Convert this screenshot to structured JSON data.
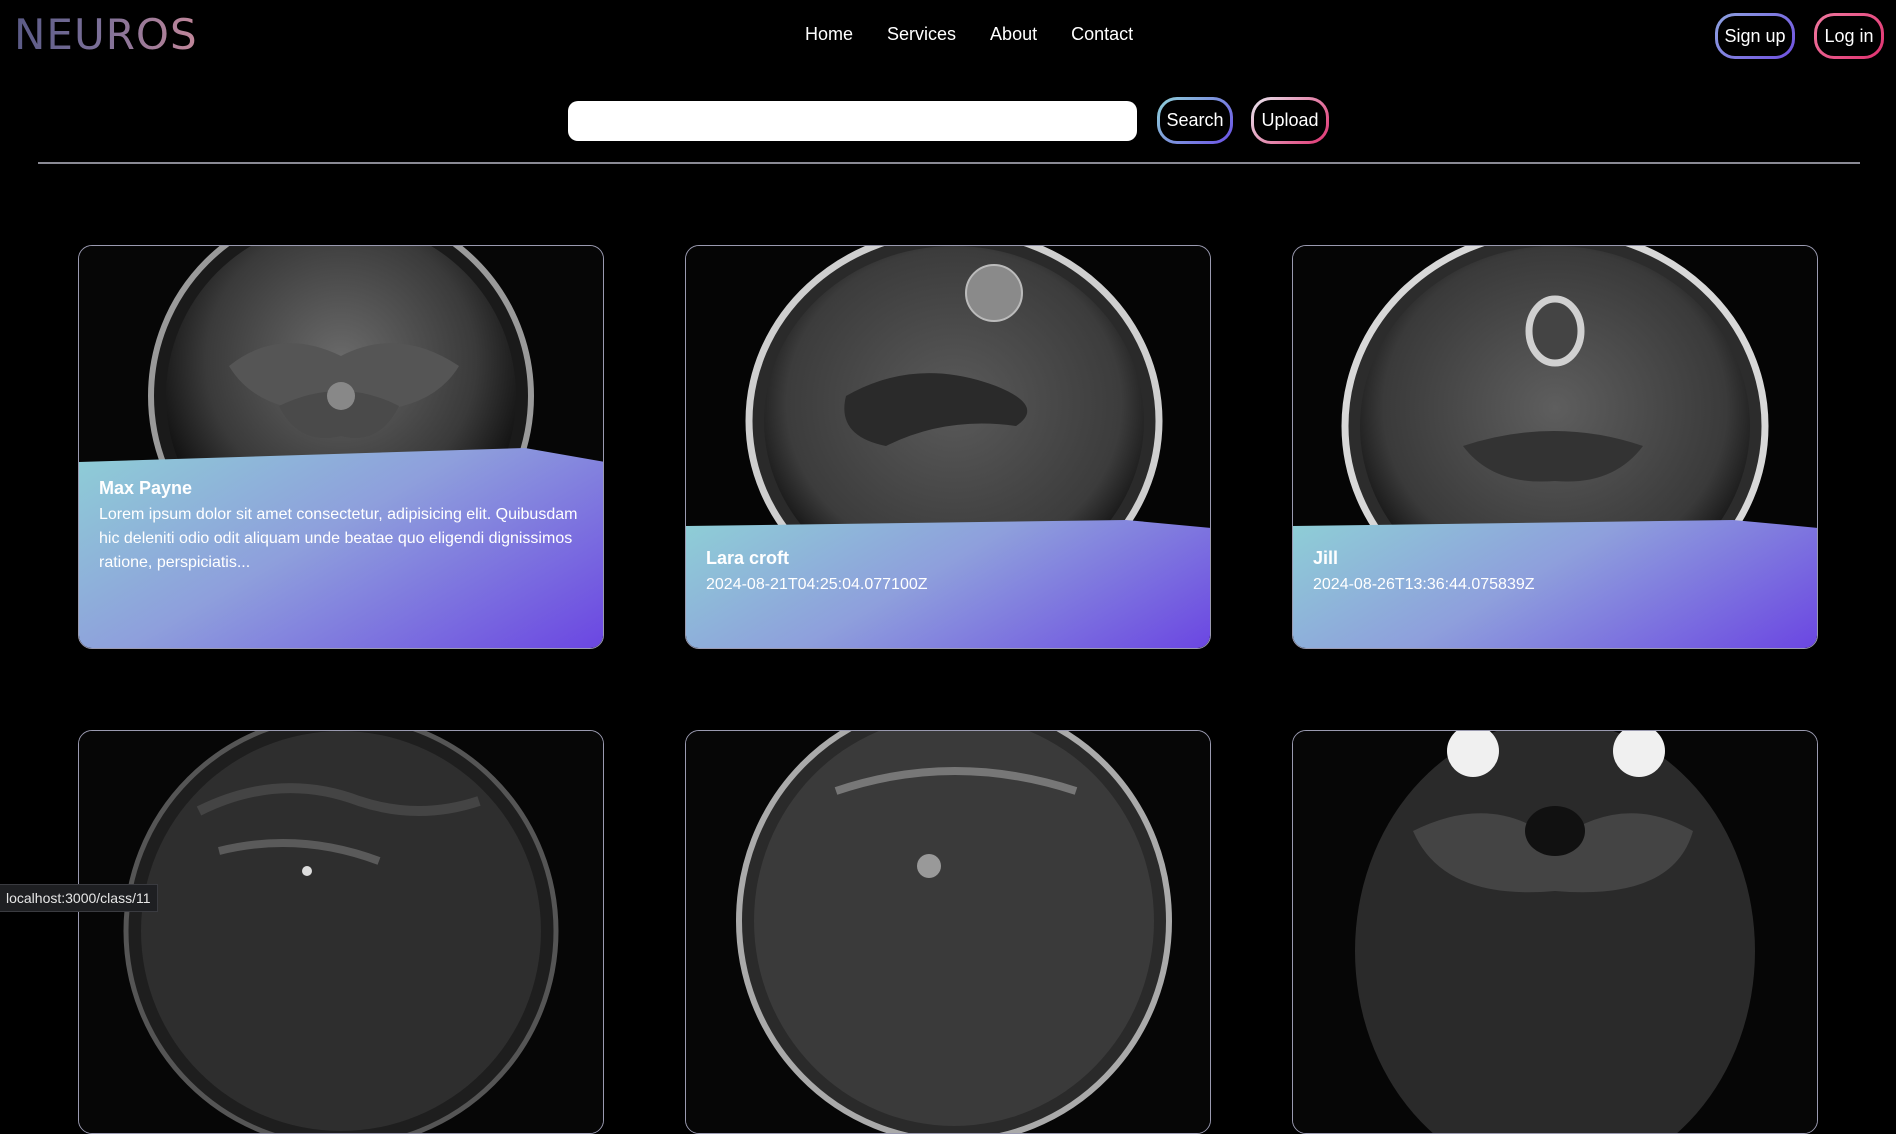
{
  "brand": {
    "logo": "NEUROS"
  },
  "nav": {
    "home": "Home",
    "services": "Services",
    "about": "About",
    "contact": "Contact"
  },
  "auth": {
    "signup": "Sign up",
    "login": "Log in"
  },
  "search": {
    "value": "",
    "placeholder": "",
    "button": "Search",
    "upload": "Upload"
  },
  "cards": [
    {
      "name": "Max Payne",
      "text": "Lorem ipsum dolor sit amet consectetur, adipisicing elit. Quibusdam hic deleniti odio odit aliquam unde beatae quo eligendi dignissimos ratione, perspiciatis..."
    },
    {
      "name": "Lara croft",
      "text": "2024-08-21T04:25:04.077100Z"
    },
    {
      "name": "Jill",
      "text": "2024-08-26T13:36:44.075839Z"
    },
    {
      "name": "",
      "text": ""
    },
    {
      "name": "",
      "text": ""
    },
    {
      "name": "",
      "text": ""
    }
  ],
  "status": {
    "url": "localhost:3000/class/11"
  },
  "colors": {
    "accent": "#6b46e2",
    "panel_start": "#8ecfd6",
    "login": "#e0306f"
  }
}
